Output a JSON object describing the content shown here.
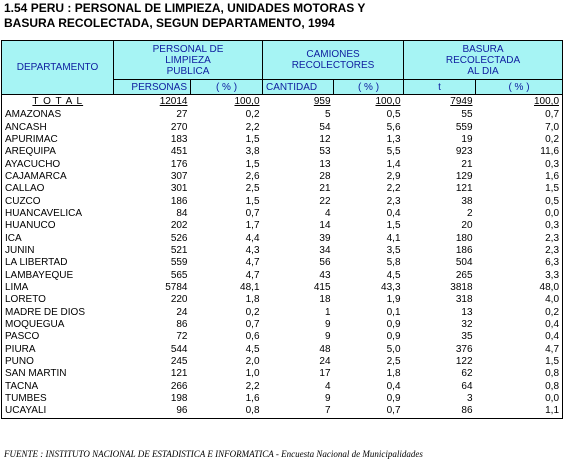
{
  "title_lines": [
    "1.54  PERU : PERSONAL DE LIMPIEZA, UNIDADES MOTORAS Y",
    "BASURA RECOLECTADA, SEGUN DEPARTAMENTO, 1994"
  ],
  "table": {
    "header": {
      "departamento": "DEPARTAMENTO",
      "groups": [
        [
          "PERSONAL DE",
          "LIMPIEZA",
          "PUBLICA"
        ],
        [
          "CAMIONES",
          "RECOLECTORES"
        ],
        [
          "BASURA",
          "RECOLECTADA",
          "AL DIA"
        ]
      ],
      "subheaders": [
        "PERSONAS",
        "( % )",
        "CANTIDAD",
        "( % )",
        "t",
        "( % )"
      ]
    },
    "total": [
      "T O T A L",
      "12014",
      "100,0",
      "959",
      "100,0",
      "7949",
      "100,0"
    ],
    "rows": [
      [
        "AMAZONAS",
        "27",
        "0,2",
        "5",
        "0,5",
        "55",
        "0,7"
      ],
      [
        "ANCASH",
        "270",
        "2,2",
        "54",
        "5,6",
        "559",
        "7,0"
      ],
      [
        "APURIMAC",
        "183",
        "1,5",
        "12",
        "1,3",
        "19",
        "0,2"
      ],
      [
        "AREQUIPA",
        "451",
        "3,8",
        "53",
        "5,5",
        "923",
        "11,6"
      ],
      [
        "AYACUCHO",
        "176",
        "1,5",
        "13",
        "1,4",
        "21",
        "0,3"
      ],
      [
        "CAJAMARCA",
        "307",
        "2,6",
        "28",
        "2,9",
        "129",
        "1,6"
      ],
      [
        "CALLAO",
        "301",
        "2,5",
        "21",
        "2,2",
        "121",
        "1,5"
      ],
      [
        "CUZCO",
        "186",
        "1,5",
        "22",
        "2,3",
        "38",
        "0,5"
      ],
      [
        "HUANCAVELICA",
        "84",
        "0,7",
        "4",
        "0,4",
        "2",
        "0,0"
      ],
      [
        "HUANUCO",
        "202",
        "1,7",
        "14",
        "1,5",
        "20",
        "0,3"
      ],
      [
        "ICA",
        "526",
        "4,4",
        "39",
        "4,1",
        "180",
        "2,3"
      ],
      [
        "JUNIN",
        "521",
        "4,3",
        "34",
        "3,5",
        "186",
        "2,3"
      ],
      [
        "LA LIBERTAD",
        "559",
        "4,7",
        "56",
        "5,8",
        "504",
        "6,3"
      ],
      [
        "LAMBAYEQUE",
        "565",
        "4,7",
        "43",
        "4,5",
        "265",
        "3,3"
      ],
      [
        "LIMA",
        "5784",
        "48,1",
        "415",
        "43,3",
        "3818",
        "48,0"
      ],
      [
        "LORETO",
        "220",
        "1,8",
        "18",
        "1,9",
        "318",
        "4,0"
      ],
      [
        "MADRE DE DIOS",
        "24",
        "0,2",
        "1",
        "0,1",
        "13",
        "0,2"
      ],
      [
        "MOQUEGUA",
        "86",
        "0,7",
        "9",
        "0,9",
        "32",
        "0,4"
      ],
      [
        "PASCO",
        "72",
        "0,6",
        "9",
        "0,9",
        "35",
        "0,4"
      ],
      [
        "PIURA",
        "544",
        "4,5",
        "48",
        "5,0",
        "376",
        "4,7"
      ],
      [
        "PUNO",
        "245",
        "2,0",
        "24",
        "2,5",
        "122",
        "1,5"
      ],
      [
        "SAN MARTIN",
        "121",
        "1,0",
        "17",
        "1,8",
        "62",
        "0,8"
      ],
      [
        "TACNA",
        "266",
        "2,2",
        "4",
        "0,4",
        "64",
        "0,8"
      ],
      [
        "TUMBES",
        "198",
        "1,6",
        "9",
        "0,9",
        "3",
        "0,0"
      ],
      [
        "UCAYALI",
        "96",
        "0,8",
        "7",
        "0,7",
        "86",
        "1,1"
      ]
    ]
  },
  "footer": "FUENTE : INSTITUTO NACIONAL DE ESTADISTICA E INFORMATICA - Encuesta Nacional de Municipalidades"
}
